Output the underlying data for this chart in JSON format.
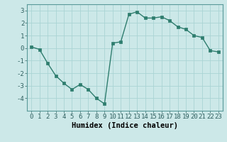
{
  "x": [
    0,
    1,
    2,
    3,
    4,
    5,
    6,
    7,
    8,
    9,
    10,
    11,
    12,
    13,
    14,
    15,
    16,
    17,
    18,
    19,
    20,
    21,
    22,
    23
  ],
  "y": [
    0.1,
    -0.1,
    -1.2,
    -2.2,
    -2.8,
    -3.3,
    -2.9,
    -3.3,
    -4.0,
    -4.45,
    0.4,
    0.5,
    2.7,
    2.9,
    2.4,
    2.4,
    2.5,
    2.2,
    1.7,
    1.5,
    1.0,
    0.85,
    -0.2,
    -0.3
  ],
  "line_color": "#2e7d6e",
  "marker_color": "#2e7d6e",
  "bg_color": "#cce8e8",
  "grid_color": "#aad4d4",
  "xlabel": "Humidex (Indice chaleur)",
  "ylim": [
    -5,
    3.5
  ],
  "xlim": [
    -0.5,
    23.5
  ],
  "yticks": [
    -4,
    -3,
    -2,
    -1,
    0,
    1,
    2,
    3
  ],
  "xticks": [
    0,
    1,
    2,
    3,
    4,
    5,
    6,
    7,
    8,
    9,
    10,
    11,
    12,
    13,
    14,
    15,
    16,
    17,
    18,
    19,
    20,
    21,
    22,
    23
  ],
  "xlabel_fontsize": 7.5,
  "tick_fontsize": 6.5,
  "line_width": 1.0,
  "marker_size": 2.5
}
